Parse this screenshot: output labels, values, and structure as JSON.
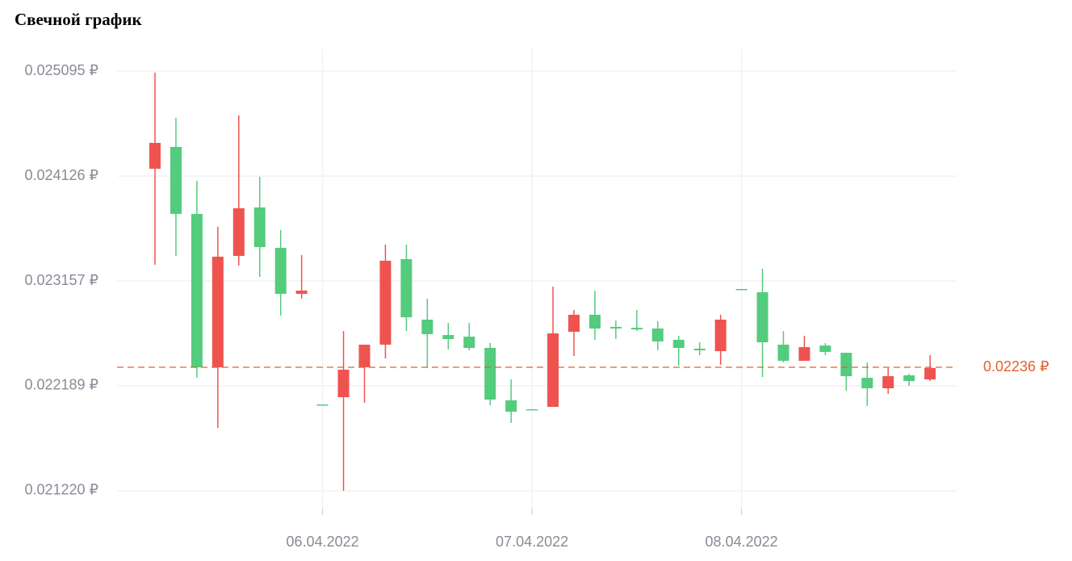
{
  "chart_data": {
    "type": "candlestick",
    "title": "Свечной график",
    "categories": [
      null,
      null,
      null,
      null,
      null,
      null,
      null,
      null,
      "06.04.2022",
      null,
      null,
      null,
      null,
      null,
      null,
      null,
      null,
      null,
      "07.04.2022",
      null,
      null,
      null,
      null,
      null,
      null,
      null,
      null,
      null,
      "08.04.2022",
      null,
      null,
      null,
      null,
      null,
      null,
      null,
      null,
      null
    ],
    "open": [
      0.024432,
      0.023776,
      0.02236,
      0.023381,
      0.023828,
      0.02347,
      0.023038,
      0.023068,
      0.022017,
      0.022338,
      0.022569,
      0.023344,
      0.022822,
      0.022666,
      0.022621,
      0.022539,
      0.022062,
      0.02195,
      0.021973,
      0.022673,
      0.022845,
      0.022718,
      0.022718,
      0.02271,
      0.022599,
      0.022539,
      0.022517,
      0.0228,
      0.023083,
      0.022591,
      0.02242,
      0.022546,
      0.022502,
      0.022278,
      0.022166,
      0.022278,
      0.022233,
      0.022353
    ],
    "high": [
      0.02508,
      0.024663,
      0.024082,
      0.023657,
      0.024685,
      0.024119,
      0.023627,
      0.023396,
      0.022017,
      0.022695,
      0.022569,
      0.023493,
      0.023493,
      0.022994,
      0.02277,
      0.02277,
      0.022584,
      0.022248,
      0.021973,
      0.023105,
      0.022889,
      0.023068,
      0.022792,
      0.022889,
      0.022785,
      0.022651,
      0.022591,
      0.022845,
      0.023083,
      0.023269,
      0.022695,
      0.022651,
      0.022584,
      0.022494,
      0.022405,
      0.022353,
      0.022301,
      0.022472
    ],
    "low": [
      0.023307,
      0.023388,
      0.022263,
      0.021801,
      0.023299,
      0.023195,
      0.022837,
      0.022994,
      0.022017,
      0.02122,
      0.022032,
      0.022442,
      0.022695,
      0.022353,
      0.022524,
      0.022517,
      0.02201,
      0.021846,
      0.021973,
      0.021995,
      0.022464,
      0.022614,
      0.022621,
      0.022695,
      0.022517,
      0.022375,
      0.022472,
      0.022383,
      0.023083,
      0.022271,
      0.022405,
      0.02242,
      0.022472,
      0.022144,
      0.022002,
      0.022114,
      0.022189,
      0.022233
    ],
    "close": [
      0.024193,
      0.024395,
      0.023776,
      0.02236,
      0.023388,
      0.023836,
      0.023463,
      0.023038,
      0.022017,
      0.022084,
      0.02236,
      0.022569,
      0.023359,
      0.0228,
      0.022658,
      0.022643,
      0.022539,
      0.022055,
      0.021973,
      0.021995,
      0.022688,
      0.022845,
      0.022733,
      0.022725,
      0.022718,
      0.022614,
      0.022532,
      0.022509,
      0.023083,
      0.023053,
      0.022569,
      0.02242,
      0.022561,
      0.022494,
      0.022263,
      0.022166,
      0.022286,
      0.022248
    ],
    "up_color": "#53cc7d",
    "down_color": "#ef5350",
    "ylim": [
      0.021056,
      0.025304
    ],
    "yticks": [
      {
        "value": 0.025095,
        "label": "0.025095 ₽"
      },
      {
        "value": 0.024126,
        "label": "0.024126 ₽"
      },
      {
        "value": 0.023157,
        "label": "0.023157 ₽"
      },
      {
        "value": 0.022189,
        "label": "0.022189 ₽"
      },
      {
        "value": 0.02122,
        "label": "0.021220 ₽"
      }
    ],
    "grid": true,
    "price_line": {
      "value": 0.02236,
      "label": "0.02236 ₽",
      "color": "#e0622a"
    }
  }
}
